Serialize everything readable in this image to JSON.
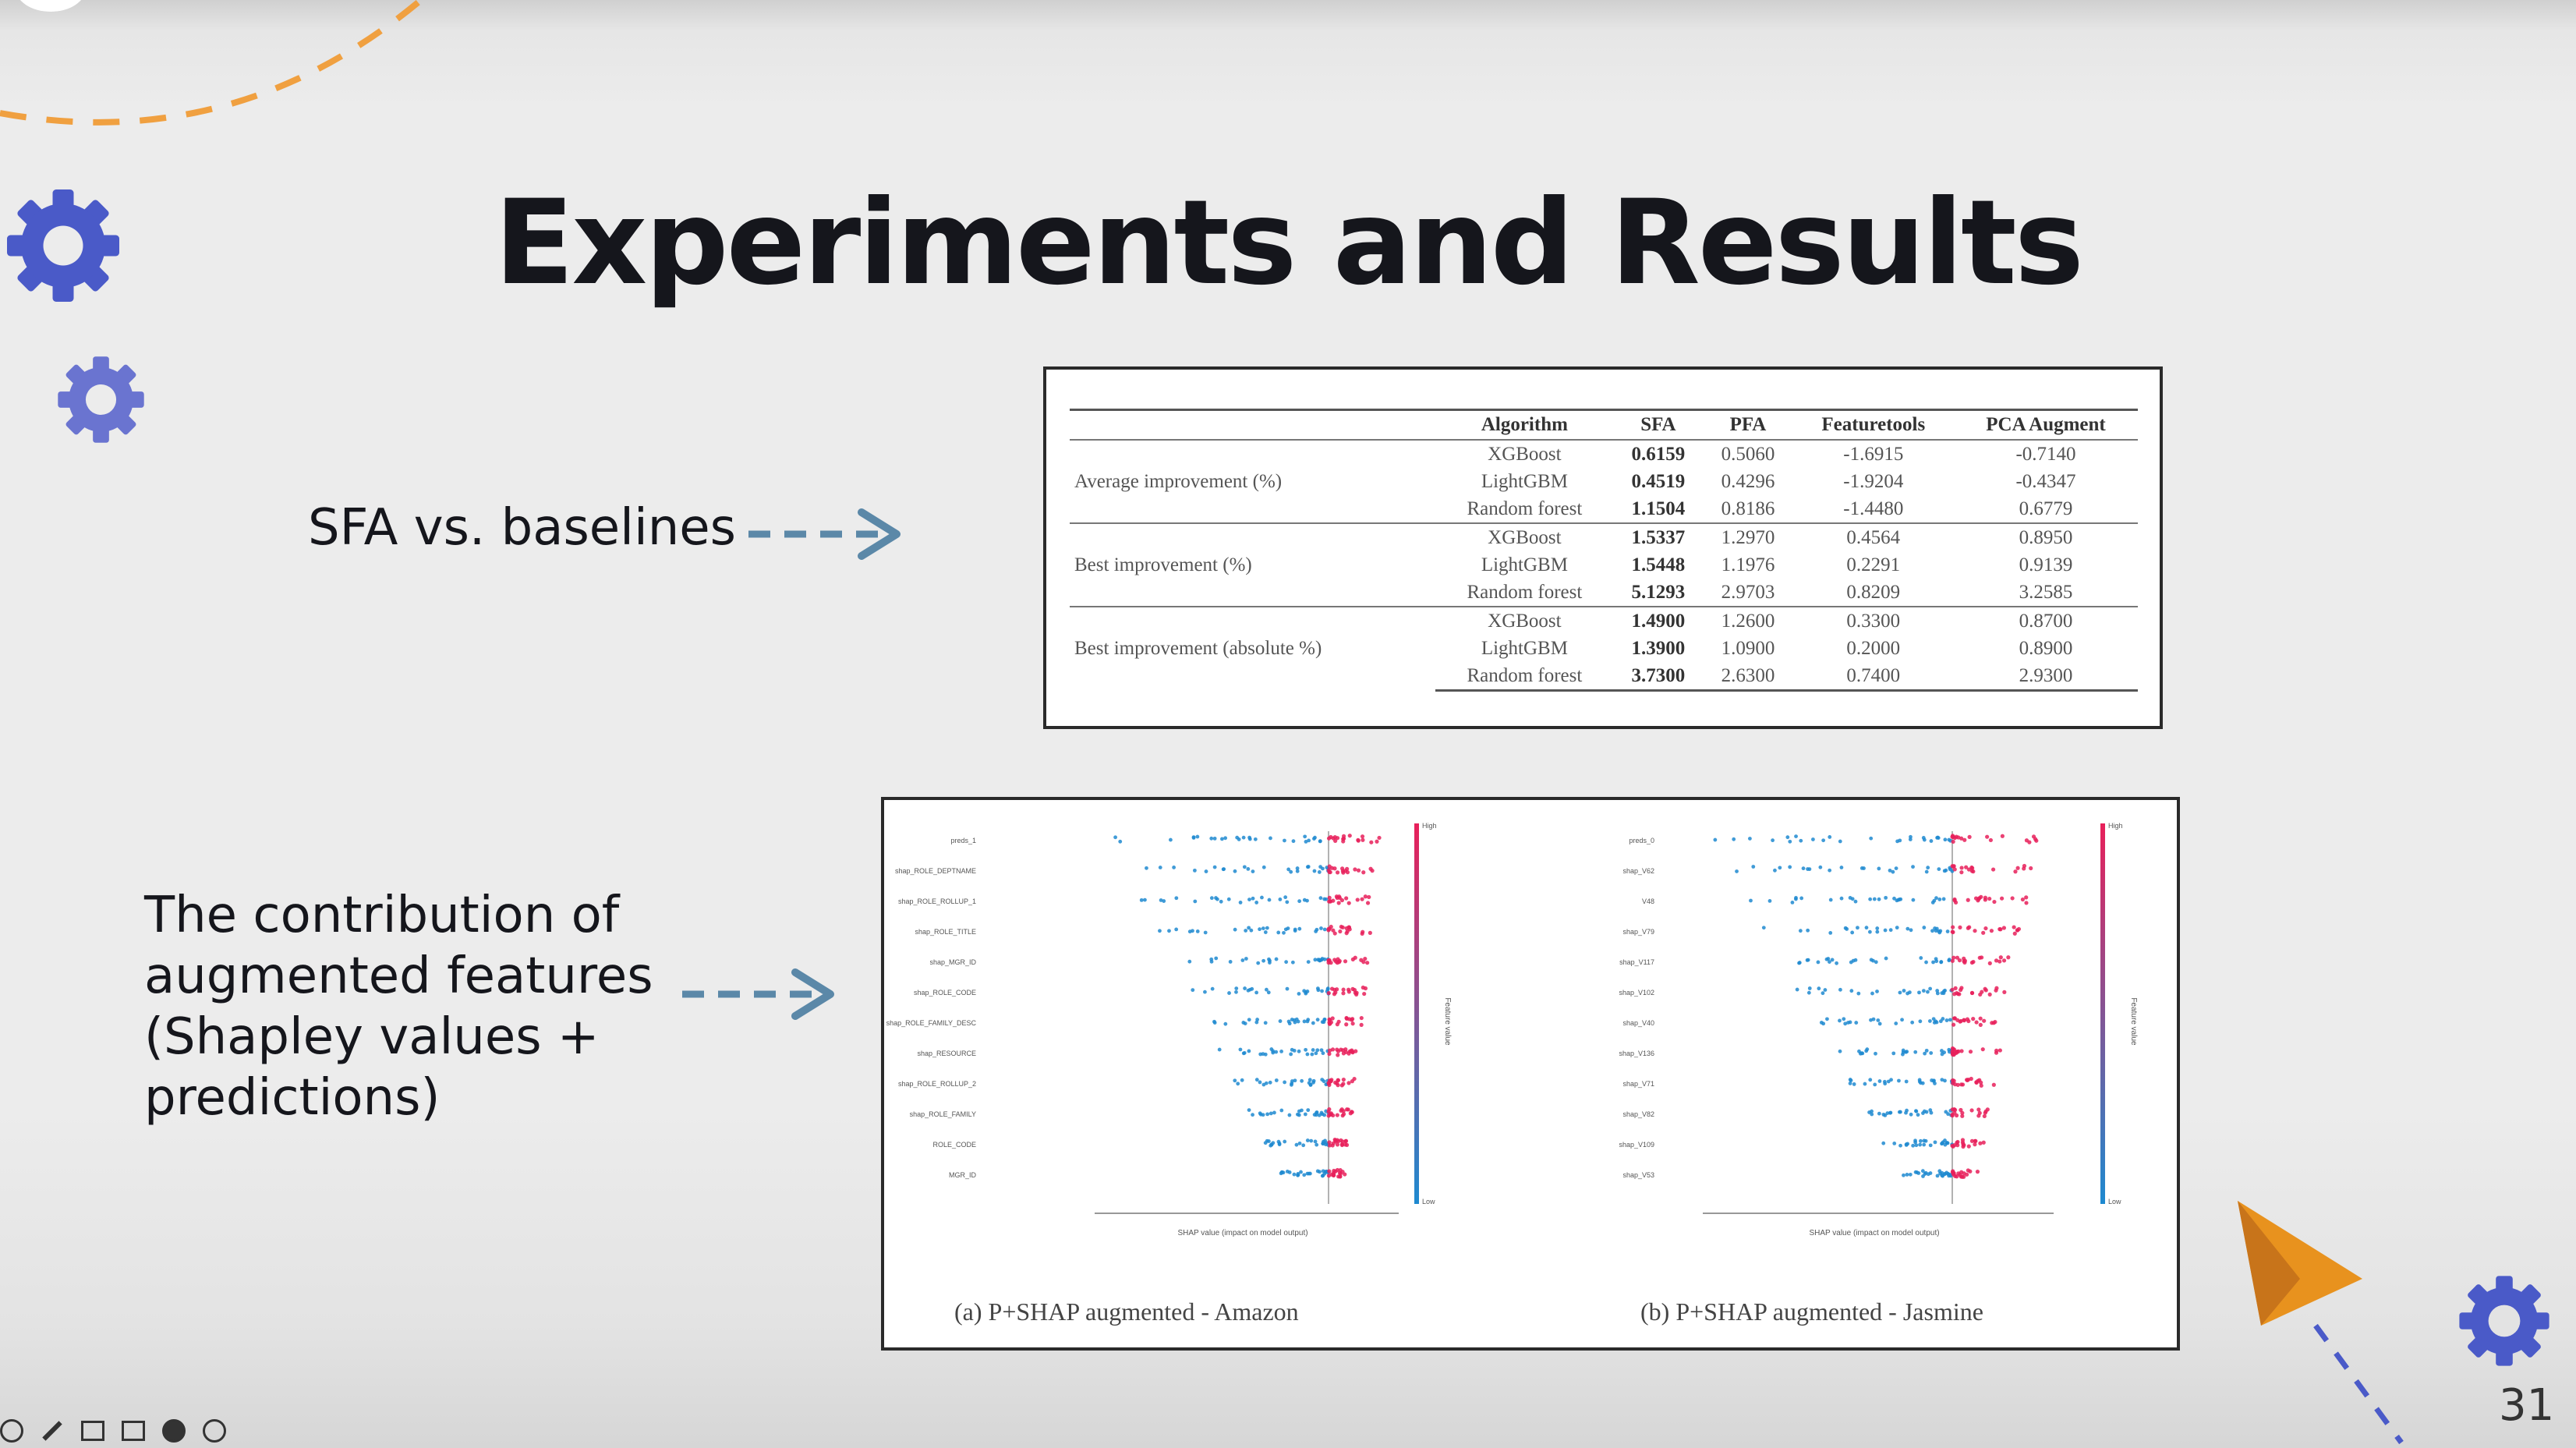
{
  "slide": {
    "title": "Experiments and Results",
    "label_sfa": "SFA vs. baselines",
    "label_contrib": "The contribution of augmented features (Shapley values + predictions)",
    "page_number": "31"
  },
  "table": {
    "headers": [
      "",
      "Algorithm",
      "SFA",
      "PFA",
      "Featuretools",
      "PCA Augment"
    ],
    "groups": [
      {
        "label": "Average improvement (%)",
        "rows": [
          [
            "XGBoost",
            "0.6159",
            "0.5060",
            "-1.6915",
            "-0.7140"
          ],
          [
            "LightGBM",
            "0.4519",
            "0.4296",
            "-1.9204",
            "-0.4347"
          ],
          [
            "Random forest",
            "1.1504",
            "0.8186",
            "-1.4480",
            "0.6779"
          ]
        ]
      },
      {
        "label": "Best improvement (%)",
        "rows": [
          [
            "XGBoost",
            "1.5337",
            "1.2970",
            "0.4564",
            "0.8950"
          ],
          [
            "LightGBM",
            "1.5448",
            "1.1976",
            "0.2291",
            "0.9139"
          ],
          [
            "Random forest",
            "5.1293",
            "2.9703",
            "0.8209",
            "3.2585"
          ]
        ]
      },
      {
        "label": "Best improvement (absolute %)",
        "rows": [
          [
            "XGBoost",
            "1.4900",
            "1.2600",
            "0.3300",
            "0.8700"
          ],
          [
            "LightGBM",
            "1.3900",
            "1.0900",
            "0.2000",
            "0.8900"
          ],
          [
            "Random forest",
            "3.7300",
            "2.6300",
            "0.7400",
            "2.9300"
          ]
        ]
      }
    ]
  },
  "shap": {
    "caption_a": "(a) P+SHAP augmented - Amazon",
    "caption_b": "(b) P+SHAP augmented - Jasmine",
    "features_a": [
      "preds_1",
      "shap_ROLE_DEPTNAME",
      "shap_ROLE_ROLLUP_1",
      "shap_ROLE_TITLE",
      "shap_MGR_ID",
      "shap_ROLE_CODE",
      "shap_ROLE_FAMILY_DESC",
      "shap_RESOURCE",
      "shap_ROLE_ROLLUP_2",
      "shap_ROLE_FAMILY",
      "ROLE_CODE",
      "MGR_ID"
    ],
    "features_b": [
      "preds_0",
      "shap_V62",
      "V48",
      "shap_V79",
      "shap_V117",
      "shap_V102",
      "shap_V40",
      "shap_V136",
      "shap_V71",
      "shap_V82",
      "shap_V109",
      "shap_V53"
    ],
    "xlabel": "SHAP value (impact on model output)",
    "colorbar_label": "Feature value",
    "colorbar_high": "High",
    "colorbar_low": "Low",
    "color_high": "#e8205a",
    "color_low": "#1e8ad0"
  },
  "colors": {
    "gear": "#4a5ac8",
    "dash_orange": "#f0a040",
    "arrow": "#5b88a8",
    "plane": "#e8921e"
  }
}
